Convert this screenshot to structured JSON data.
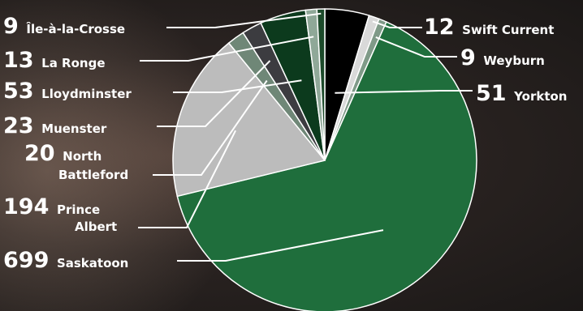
{
  "chart_data": {
    "type": "pie",
    "total_order_note": "",
    "slices": [
      {
        "name": "Yorkton",
        "value": 51,
        "color": "#000000"
      },
      {
        "name": "Swift Current",
        "value": 12,
        "color": "#d9d9d9"
      },
      {
        "name": "Weyburn",
        "value": 9,
        "color": "#7f9a88"
      },
      {
        "name": "Saskatoon",
        "value": 699,
        "color": "#1f6e3c"
      },
      {
        "name": "Prince Albert",
        "value": 194,
        "color": "#bcbcbc"
      },
      {
        "name": "North Battleford",
        "value": 20,
        "color": "#6f8777"
      },
      {
        "name": "Muenster",
        "value": 23,
        "color": "#3c3c40"
      },
      {
        "name": "Lloydminster",
        "value": 53,
        "color": "#0c3a1d"
      },
      {
        "name": "La Ronge",
        "value": 13,
        "color": "#8fa898"
      },
      {
        "name": "Île-à-la-Crosse",
        "value": 9,
        "color": "#1c4a2a"
      }
    ],
    "labels": [
      {
        "slice": "Île-à-la-Crosse",
        "value": "9",
        "line1": "Île-à-la-Crosse",
        "line2": ""
      },
      {
        "slice": "La Ronge",
        "value": "13",
        "line1": "La Ronge",
        "line2": ""
      },
      {
        "slice": "Lloydminster",
        "value": "53",
        "line1": "Lloydminster",
        "line2": ""
      },
      {
        "slice": "Muenster",
        "value": "23",
        "line1": "Muenster",
        "line2": ""
      },
      {
        "slice": "North Battleford",
        "value": "20",
        "line1": "North",
        "line2": "Battleford"
      },
      {
        "slice": "Prince Albert",
        "value": "194",
        "line1": "Prince",
        "line2": "Albert"
      },
      {
        "slice": "Saskatoon",
        "value": "699",
        "line1": "Saskatoon",
        "line2": ""
      },
      {
        "slice": "Swift Current",
        "value": "12",
        "line1": "Swift Current",
        "line2": ""
      },
      {
        "slice": "Weyburn",
        "value": "9",
        "line1": "Weyburn",
        "line2": ""
      },
      {
        "slice": "Yorkton",
        "value": "51",
        "line1": "Yorkton",
        "line2": ""
      }
    ]
  }
}
